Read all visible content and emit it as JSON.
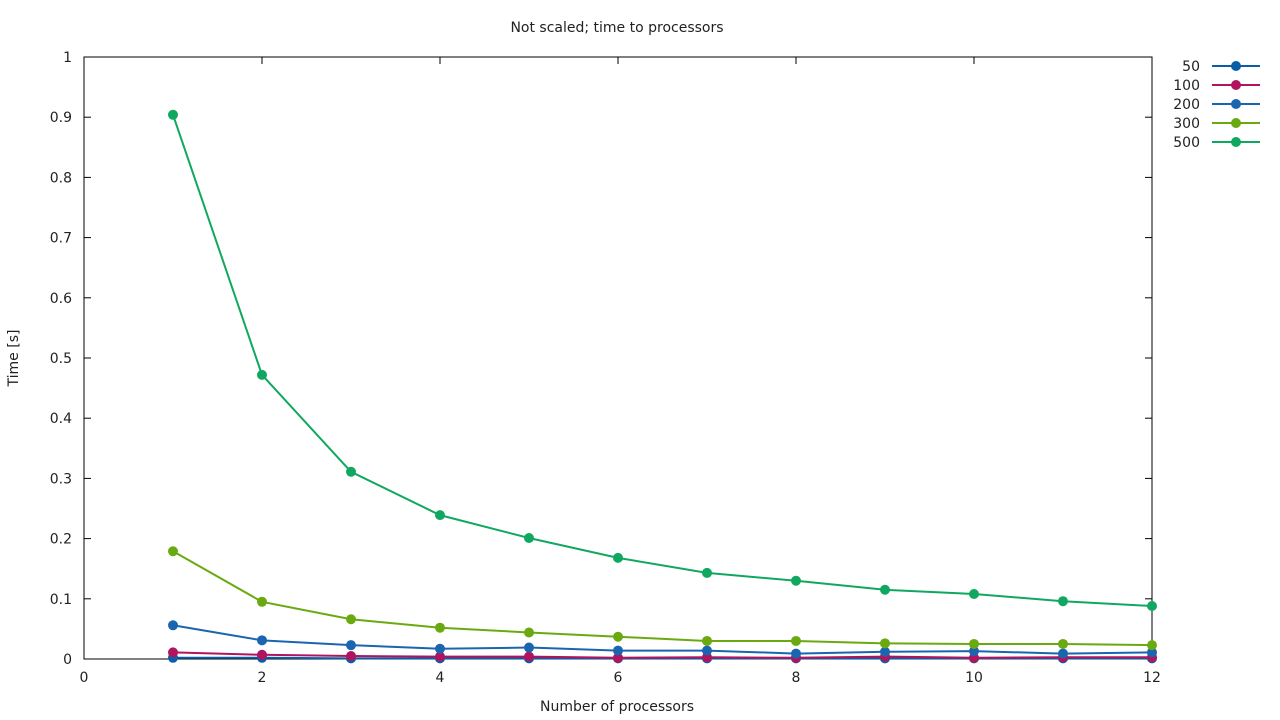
{
  "chart_data": {
    "type": "line",
    "title": "Not scaled; time to processors",
    "xlabel": "Number of processors",
    "ylabel": "Time [s]",
    "xlim": [
      0,
      12
    ],
    "ylim": [
      0,
      1
    ],
    "xticks": [
      0,
      2,
      4,
      6,
      8,
      10,
      12
    ],
    "yticks": [
      0,
      0.1,
      0.2,
      0.3,
      0.4,
      0.5,
      0.6,
      0.7,
      0.8,
      0.9,
      1
    ],
    "grid": false,
    "legend_position": "right-top-outside",
    "x": [
      1,
      2,
      3,
      4,
      5,
      6,
      7,
      8,
      9,
      10,
      11,
      12
    ],
    "series": [
      {
        "name": "50",
        "color": "#0a5ea8",
        "values": [
          0.002,
          0.002,
          0.001,
          0.001,
          0.001,
          0.001,
          0.001,
          0.001,
          0.001,
          0.001,
          0.001,
          0.001
        ]
      },
      {
        "name": "100",
        "color": "#b0145e",
        "values": [
          0.011,
          0.007,
          0.005,
          0.004,
          0.004,
          0.002,
          0.003,
          0.002,
          0.004,
          0.002,
          0.003,
          0.003
        ]
      },
      {
        "name": "200",
        "color": "#1a65b0",
        "values": [
          0.056,
          0.031,
          0.023,
          0.017,
          0.019,
          0.014,
          0.014,
          0.009,
          0.012,
          0.013,
          0.009,
          0.011
        ]
      },
      {
        "name": "300",
        "color": "#6aaa10",
        "values": [
          0.179,
          0.095,
          0.066,
          0.052,
          0.044,
          0.037,
          0.03,
          0.03,
          0.026,
          0.025,
          0.025,
          0.023
        ]
      },
      {
        "name": "500",
        "color": "#10a860",
        "values": [
          0.904,
          0.472,
          0.311,
          0.239,
          0.201,
          0.168,
          0.143,
          0.13,
          0.115,
          0.108,
          0.096,
          0.088
        ]
      }
    ]
  }
}
